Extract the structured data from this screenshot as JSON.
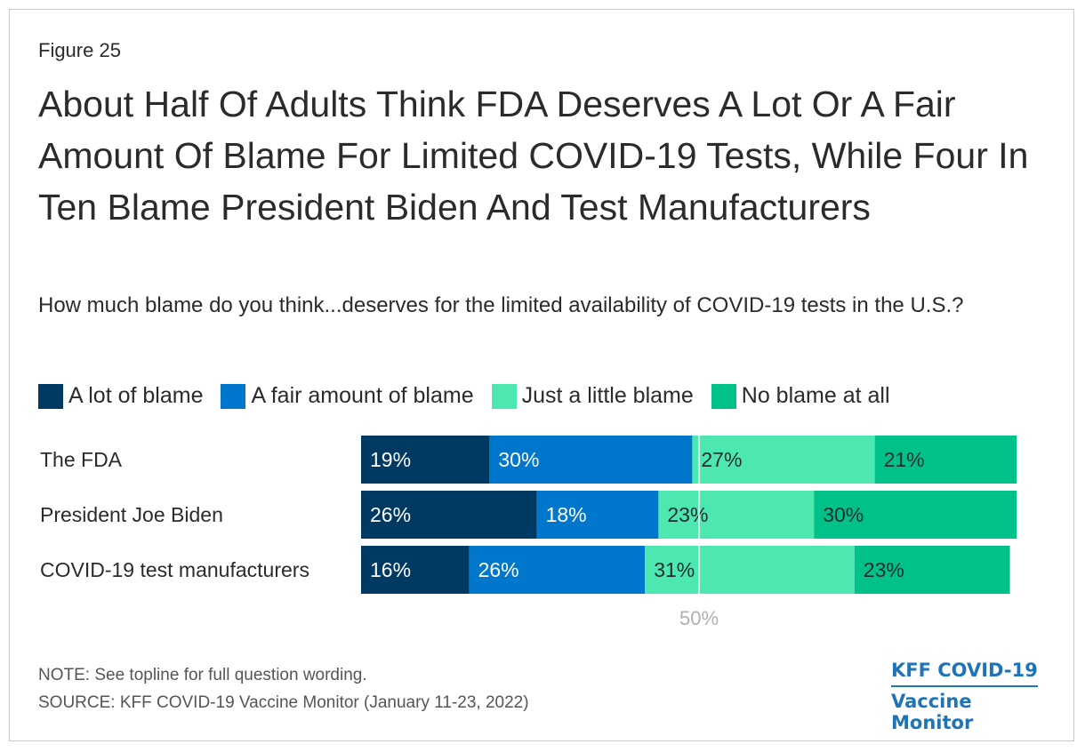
{
  "figure_label": "Figure 25",
  "title": "About Half Of Adults Think FDA Deserves A Lot Or A Fair Amount Of Blame For Limited COVID-19 Tests, While Four In Ten Blame President Biden And Test Manufacturers",
  "subtitle": "How much blame do you think...deserves for the limited availability of COVID-19 tests in the U.S.?",
  "note": "NOTE: See topline for full question wording.",
  "source": "SOURCE: KFF COVID-19 Vaccine Monitor (January 11-23, 2022)",
  "logo": {
    "line1": "KFF COVID-19",
    "line2": "Vaccine Monitor"
  },
  "chart_data": {
    "type": "bar",
    "orientation": "horizontal",
    "stacked": true,
    "categories": [
      "The FDA",
      "President Joe Biden",
      "COVID-19 test manufacturers"
    ],
    "series": [
      {
        "name": "A lot of blame",
        "color": "#003a63",
        "values": [
          19,
          26,
          16
        ]
      },
      {
        "name": "A fair amount of blame",
        "color": "#0077cc",
        "values": [
          30,
          18,
          26
        ]
      },
      {
        "name": "Just a little blame",
        "color": "#4de8b0",
        "values": [
          27,
          23,
          31
        ]
      },
      {
        "name": "No blame at all",
        "color": "#00c18a",
        "values": [
          21,
          30,
          23
        ]
      }
    ],
    "value_suffix": "%",
    "xlim": [
      0,
      100
    ],
    "reference_line": {
      "value": 50,
      "label": "50%"
    },
    "legend_position": "top-left"
  }
}
